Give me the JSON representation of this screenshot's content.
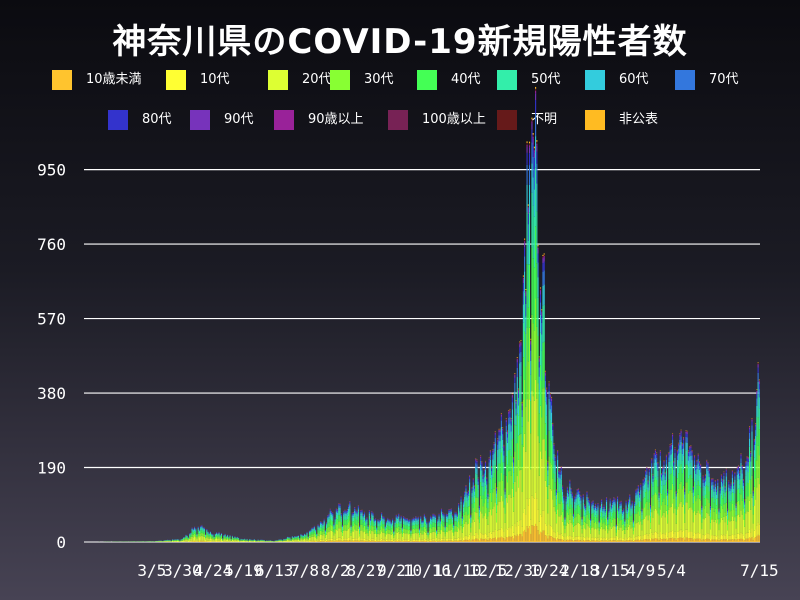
{
  "title": "神奈川県のCOVID-19新規陽性者数",
  "legend": [
    {
      "label": "10歳未満",
      "color": "#ffc42e"
    },
    {
      "label": "10代",
      "color": "#ffff33"
    },
    {
      "label": "20代",
      "color": "#ddff33"
    },
    {
      "label": "30代",
      "color": "#88ff33"
    },
    {
      "label": "40代",
      "color": "#44ff55"
    },
    {
      "label": "50代",
      "color": "#33eeaa"
    },
    {
      "label": "60代",
      "color": "#33ccdd"
    },
    {
      "label": "70代",
      "color": "#3377dd"
    },
    {
      "label": "80代",
      "color": "#3333cc"
    },
    {
      "label": "90代",
      "color": "#7733bb"
    },
    {
      "label": "90歳以上",
      "color": "#992299"
    },
    {
      "label": "100歳以上",
      "color": "#772255"
    },
    {
      "label": "不明",
      "color": "#661a1a"
    },
    {
      "label": "非公表",
      "color": "#ffbb22"
    }
  ],
  "chart_data": {
    "type": "bar",
    "stacked": true,
    "title": "神奈川県のCOVID-19新規陽性者数",
    "y_ticks": [
      0,
      190,
      380,
      570,
      760,
      950
    ],
    "ylim": [
      0,
      1000
    ],
    "grid": true,
    "x_tick_labels": [
      "3/5",
      "3/30",
      "4/24",
      "5/19",
      "6/13",
      "7/8",
      "8/2",
      "8/27",
      "9/21",
      "10/16",
      "11/10",
      "12/5",
      "12/30",
      "1/24",
      "2/18",
      "3/15",
      "4/9",
      "5/4",
      "7/15"
    ],
    "x_start": "2020-01-10",
    "x_end": "2021-07-15",
    "series_order": [
      "10歳未満",
      "10代",
      "20代",
      "30代",
      "40代",
      "50代",
      "60代",
      "70代",
      "80代",
      "90代",
      "90歳以上",
      "100歳以上",
      "不明",
      "非公表"
    ],
    "age_shares": [
      0.04,
      0.07,
      0.25,
      0.18,
      0.16,
      0.13,
      0.07,
      0.05,
      0.03,
      0.015,
      0.005,
      0.001,
      0.004,
      0.004
    ],
    "daily_total_keypoints": [
      [
        "2020-01-10",
        0
      ],
      [
        "2020-03-05",
        2
      ],
      [
        "2020-03-30",
        8
      ],
      [
        "2020-04-10",
        40
      ],
      [
        "2020-04-24",
        25
      ],
      [
        "2020-05-19",
        8
      ],
      [
        "2020-06-13",
        3
      ],
      [
        "2020-07-08",
        20
      ],
      [
        "2020-08-02",
        75
      ],
      [
        "2020-08-10",
        95
      ],
      [
        "2020-08-27",
        70
      ],
      [
        "2020-09-21",
        60
      ],
      [
        "2020-10-16",
        55
      ],
      [
        "2020-11-10",
        80
      ],
      [
        "2020-11-25",
        180
      ],
      [
        "2020-12-05",
        200
      ],
      [
        "2020-12-20",
        300
      ],
      [
        "2020-12-30",
        420
      ],
      [
        "2021-01-06",
        800
      ],
      [
        "2021-01-09",
        960
      ],
      [
        "2021-01-14",
        900
      ],
      [
        "2021-01-24",
        350
      ],
      [
        "2021-02-05",
        140
      ],
      [
        "2021-02-18",
        110
      ],
      [
        "2021-03-15",
        100
      ],
      [
        "2021-03-30",
        95
      ],
      [
        "2021-04-09",
        130
      ],
      [
        "2021-04-20",
        200
      ],
      [
        "2021-05-04",
        220
      ],
      [
        "2021-05-15",
        270
      ],
      [
        "2021-05-25",
        200
      ],
      [
        "2021-06-10",
        160
      ],
      [
        "2021-06-25",
        170
      ],
      [
        "2021-07-05",
        190
      ],
      [
        "2021-07-15",
        380
      ]
    ]
  }
}
